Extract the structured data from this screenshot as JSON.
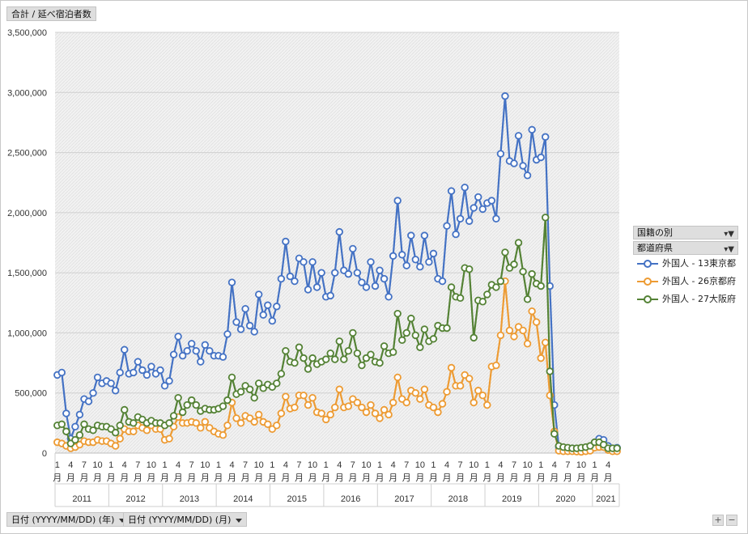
{
  "header": {
    "field_label": "合計 / 延べ宿泊者数"
  },
  "legend": {
    "filter1_label": "国籍の別",
    "filter2_label": "都道府県",
    "items": [
      {
        "label": "外国人 - 13東京都",
        "color": "#4472C4"
      },
      {
        "label": "外国人 - 26京都府",
        "color": "#ED9B33"
      },
      {
        "label": "外国人 - 27大阪府",
        "color": "#548235"
      }
    ]
  },
  "footer": {
    "year_field_label": "日付 (YYYY/MM/DD) (年)",
    "month_field_label": "日付 (YYYY/MM/DD) (月)",
    "expand_label": "+",
    "collapse_label": "−"
  },
  "chart_data": {
    "type": "line",
    "ylim": [
      0,
      3500000
    ],
    "y_ticks": [
      "0",
      "500,000",
      "1,000,000",
      "1,500,000",
      "2,000,000",
      "2,500,000",
      "3,000,000",
      "3,500,000"
    ],
    "month_tick_values": [
      "1",
      "4",
      "7",
      "10"
    ],
    "month_suffix": "月",
    "years": [
      "2011",
      "2012",
      "2013",
      "2014",
      "2015",
      "2016",
      "2017",
      "2018",
      "2019",
      "2020",
      "2021"
    ],
    "grid": true,
    "legend_position": "right",
    "series": [
      {
        "name": "外国人 - 13東京都",
        "color": "#4472C4",
        "values": [
          650000,
          670000,
          330000,
          120000,
          220000,
          320000,
          450000,
          430000,
          500000,
          630000,
          580000,
          600000,
          580000,
          520000,
          670000,
          860000,
          660000,
          670000,
          760000,
          690000,
          650000,
          720000,
          660000,
          690000,
          560000,
          600000,
          820000,
          970000,
          810000,
          850000,
          910000,
          850000,
          760000,
          900000,
          850000,
          810000,
          810000,
          800000,
          990000,
          1420000,
          1090000,
          1030000,
          1200000,
          1060000,
          1010000,
          1320000,
          1150000,
          1230000,
          1100000,
          1220000,
          1450000,
          1760000,
          1470000,
          1430000,
          1620000,
          1590000,
          1360000,
          1590000,
          1380000,
          1500000,
          1300000,
          1310000,
          1500000,
          1840000,
          1520000,
          1490000,
          1700000,
          1500000,
          1420000,
          1380000,
          1590000,
          1390000,
          1520000,
          1450000,
          1300000,
          1640000,
          2100000,
          1650000,
          1560000,
          1810000,
          1610000,
          1550000,
          1810000,
          1590000,
          1660000,
          1450000,
          1430000,
          1890000,
          2180000,
          1820000,
          1950000,
          2210000,
          1930000,
          2040000,
          2130000,
          2030000,
          2080000,
          2100000,
          1950000,
          2490000,
          2970000,
          2430000,
          2410000,
          2640000,
          2390000,
          2310000,
          2690000,
          2440000,
          2460000,
          2630000,
          1390000,
          400000,
          50000,
          40000,
          40000,
          40000,
          30000,
          35000,
          40000,
          50000,
          90000,
          120000,
          110000,
          60000,
          40000,
          45000
        ]
      },
      {
        "name": "外国人 - 26京都府",
        "color": "#ED9B33",
        "values": [
          90000,
          80000,
          60000,
          40000,
          50000,
          70000,
          100000,
          90000,
          90000,
          110000,
          100000,
          100000,
          80000,
          60000,
          120000,
          200000,
          180000,
          180000,
          230000,
          210000,
          190000,
          230000,
          200000,
          200000,
          110000,
          120000,
          220000,
          300000,
          250000,
          250000,
          260000,
          250000,
          210000,
          260000,
          210000,
          180000,
          160000,
          150000,
          230000,
          420000,
          290000,
          250000,
          310000,
          290000,
          260000,
          320000,
          260000,
          240000,
          200000,
          230000,
          330000,
          470000,
          370000,
          380000,
          480000,
          480000,
          400000,
          460000,
          340000,
          330000,
          280000,
          320000,
          380000,
          530000,
          380000,
          390000,
          450000,
          420000,
          380000,
          340000,
          400000,
          330000,
          290000,
          360000,
          320000,
          420000,
          630000,
          450000,
          420000,
          520000,
          500000,
          450000,
          530000,
          400000,
          380000,
          340000,
          410000,
          510000,
          710000,
          560000,
          560000,
          650000,
          620000,
          420000,
          520000,
          480000,
          400000,
          720000,
          730000,
          980000,
          1430000,
          1020000,
          970000,
          1050000,
          1020000,
          910000,
          1180000,
          1090000,
          790000,
          920000,
          480000,
          180000,
          20000,
          15000,
          15000,
          15000,
          12000,
          10000,
          15000,
          20000,
          45000,
          50000,
          50000,
          25000,
          15000,
          15000
        ]
      },
      {
        "name": "外国人 - 27大阪府",
        "color": "#548235",
        "values": [
          230000,
          240000,
          180000,
          80000,
          110000,
          150000,
          240000,
          200000,
          190000,
          230000,
          220000,
          220000,
          200000,
          170000,
          230000,
          360000,
          260000,
          250000,
          300000,
          280000,
          250000,
          270000,
          250000,
          250000,
          230000,
          250000,
          310000,
          460000,
          340000,
          400000,
          440000,
          400000,
          350000,
          370000,
          360000,
          360000,
          370000,
          390000,
          440000,
          630000,
          490000,
          510000,
          560000,
          530000,
          460000,
          580000,
          540000,
          570000,
          550000,
          580000,
          660000,
          850000,
          760000,
          750000,
          880000,
          790000,
          700000,
          790000,
          740000,
          760000,
          780000,
          830000,
          780000,
          930000,
          780000,
          850000,
          1000000,
          830000,
          730000,
          790000,
          820000,
          760000,
          750000,
          890000,
          830000,
          840000,
          1160000,
          940000,
          1000000,
          1120000,
          980000,
          880000,
          1030000,
          930000,
          950000,
          1060000,
          1040000,
          1040000,
          1380000,
          1300000,
          1290000,
          1540000,
          1530000,
          960000,
          1270000,
          1260000,
          1320000,
          1400000,
          1380000,
          1430000,
          1670000,
          1540000,
          1570000,
          1750000,
          1510000,
          1280000,
          1490000,
          1410000,
          1390000,
          1960000,
          680000,
          160000,
          60000,
          50000,
          45000,
          40000,
          40000,
          45000,
          50000,
          60000,
          90000,
          90000,
          70000,
          40000,
          40000,
          40000
        ]
      }
    ]
  }
}
